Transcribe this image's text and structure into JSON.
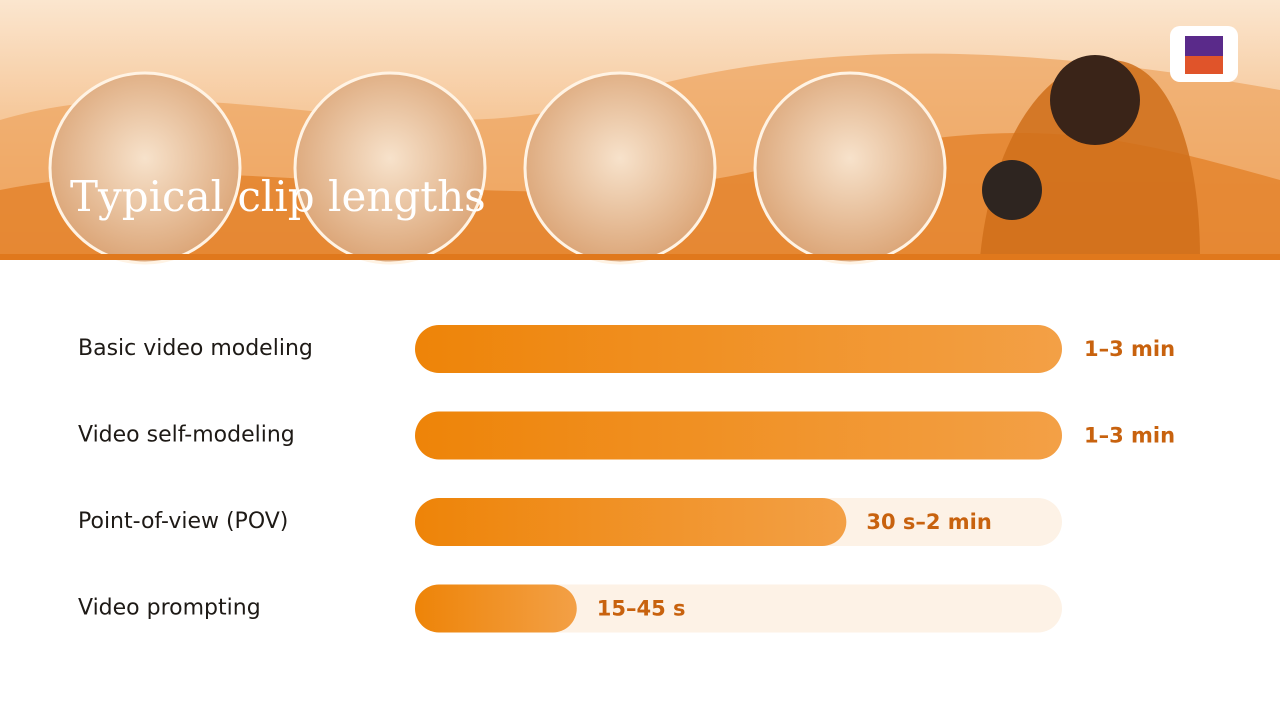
{
  "chart_data": {
    "type": "bar",
    "title": "Typical clip lengths",
    "categories": [
      "Basic video modeling",
      "Video self-modeling",
      "Point-of-view (POV)",
      "Video prompting"
    ],
    "values": [
      180,
      180,
      120,
      45
    ],
    "value_labels": [
      "1–3 min",
      "1–3 min",
      "30 s–2 min",
      "15–45 s"
    ],
    "xlim": [
      0,
      180
    ],
    "color": "#ef8a10"
  }
}
